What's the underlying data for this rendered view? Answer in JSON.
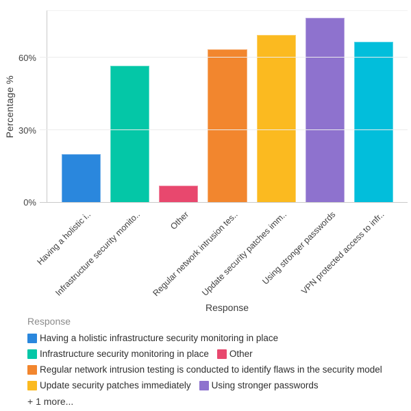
{
  "chart_data": {
    "type": "bar",
    "title": "",
    "xlabel": "Response",
    "ylabel": "Percentage %",
    "ylim": [
      0,
      80
    ],
    "grid": "horizontal",
    "legend_position": "bottom",
    "y_ticks": [
      {
        "value": 0,
        "label": "0%"
      },
      {
        "value": 30,
        "label": "30%"
      },
      {
        "value": 60,
        "label": "60%"
      }
    ],
    "categories": [
      "Having a holistic infrastructure security monitoring in place",
      "Infrastructure security monitoring in place",
      "Other",
      "Regular network intrusion testing is conducted to identify flaws in the security model",
      "Update security patches immediately",
      "Using stronger passwords",
      "VPN protected access to infr.."
    ],
    "x_tick_labels": [
      "Having a holistic i..",
      "Infrastructure security monito..",
      "Other",
      "Regular network intrusion tes..",
      "Update security patches imm..",
      "Using stronger passwords",
      "VPN protected access to infr.."
    ],
    "values": [
      20,
      57,
      7,
      64,
      70,
      77,
      67
    ],
    "colors": [
      "#2A87DD",
      "#04C7A7",
      "#E8486E",
      "#F2862E",
      "#FBBA20",
      "#8E72CE",
      "#02BEDB"
    ]
  },
  "legend": {
    "title": "Response",
    "items": [
      {
        "label": "Having a holistic infrastructure security monitoring in place",
        "color": "#2A87DD"
      },
      {
        "label": "Infrastructure security monitoring in place",
        "color": "#04C7A7"
      },
      {
        "label": "Other",
        "color": "#E8486E"
      },
      {
        "label": "Regular network intrusion testing is conducted to identify flaws in the security model",
        "color": "#F2862E"
      },
      {
        "label": "Update security patches immediately",
        "color": "#FBBA20"
      },
      {
        "label": "Using stronger passwords",
        "color": "#8E72CE"
      }
    ],
    "more_label": "+ 1 more..."
  }
}
